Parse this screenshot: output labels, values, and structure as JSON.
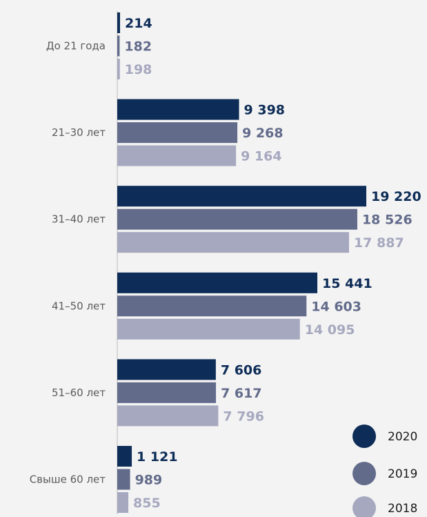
{
  "chart_data": {
    "type": "bar",
    "orientation": "horizontal",
    "categories": [
      "До 21 года",
      "21–30 лет",
      "31–40 лет",
      "41–50 лет",
      "51–60 лет",
      "Свыше 60 лет"
    ],
    "series": [
      {
        "name": "2020",
        "color": "#0d2c57",
        "values": [
          214,
          9398,
          19220,
          15441,
          7606,
          1121
        ],
        "labels": [
          "214",
          "9 398",
          "19 220",
          "15 441",
          "7 606",
          "1 121"
        ]
      },
      {
        "name": "2019",
        "color": "#636b8b",
        "values": [
          182,
          9268,
          18526,
          14603,
          7617,
          989
        ],
        "labels": [
          "182",
          "9 268",
          "18 526",
          "14 603",
          "7 617",
          "989"
        ]
      },
      {
        "name": "2018",
        "color": "#a6a8bf",
        "values": [
          198,
          9164,
          17887,
          14095,
          7796,
          855
        ],
        "labels": [
          "198",
          "9 164",
          "17 887",
          "14 095",
          "7 796",
          "855"
        ]
      }
    ],
    "legend_position": "bottom-right",
    "grid": false,
    "title": "",
    "xlabel": "",
    "ylabel": ""
  }
}
